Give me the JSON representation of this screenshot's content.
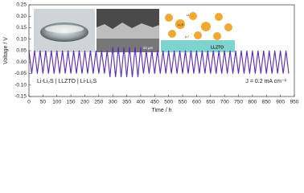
{
  "chart_data": {
    "type": "line",
    "y_label": "Voltage / V",
    "x_label": "Time / h",
    "annotations": [
      "Li-Li₂S | LLZTO | Li-Li₂S",
      "J = 0.2 mA cm⁻²"
    ],
    "inset_labels": [
      "10 μm",
      "LLZTO",
      "Li",
      "Li₂S",
      "Li⁺"
    ],
    "x": [
      0,
      10,
      20,
      30,
      40,
      50,
      60,
      70,
      80,
      90,
      100,
      110,
      120,
      130,
      140,
      150,
      160,
      170,
      180,
      190,
      200,
      210,
      220,
      230,
      240,
      250,
      260,
      270,
      280,
      290,
      300,
      310,
      320,
      330,
      340,
      350,
      360,
      370,
      380,
      390,
      400,
      410,
      420,
      430,
      440,
      450,
      460,
      470,
      480,
      490,
      500,
      510,
      520,
      530,
      540,
      550,
      560,
      570,
      580,
      590,
      600,
      610,
      620,
      630,
      640,
      650,
      660,
      670,
      680,
      690,
      700,
      710,
      720,
      730,
      740,
      750,
      760,
      770,
      780,
      790,
      800,
      810,
      820,
      830,
      840,
      850,
      860,
      870,
      880,
      890,
      900,
      910,
      920,
      930
    ],
    "series": [
      {
        "color": "#5b2bb5",
        "values": [
          0.05,
          -0.05,
          0.05,
          -0.05,
          0.05,
          -0.05,
          0.05,
          -0.05,
          0.05,
          -0.05,
          0.05,
          -0.05,
          0.05,
          -0.05,
          0.05,
          -0.05,
          0.05,
          -0.05,
          0.05,
          -0.05,
          0.05,
          -0.05,
          0.05,
          -0.05,
          0.05,
          -0.05,
          0.05,
          -0.05,
          0.05,
          -0.065,
          0.065,
          -0.065,
          0.065,
          -0.065,
          0.065,
          -0.065,
          0.065,
          -0.065,
          0.065,
          -0.065,
          0.065,
          -0.05,
          0.05,
          -0.05,
          0.05,
          -0.05,
          0.05,
          -0.05,
          0.05,
          -0.05,
          0.05,
          -0.05,
          0.05,
          -0.05,
          0.05,
          -0.05,
          0.05,
          -0.05,
          0.05,
          -0.05,
          0.05,
          -0.05,
          0.05,
          -0.05,
          0.05,
          -0.05,
          0.05,
          -0.05,
          0.05,
          -0.05,
          0.05,
          -0.05,
          0.05,
          -0.05,
          0.05,
          -0.05,
          0.05,
          -0.05,
          0.05,
          -0.05,
          0.05,
          -0.05,
          0.05,
          -0.05,
          0.05,
          -0.05,
          0.05,
          -0.05,
          0.05,
          -0.05,
          0.05,
          -0.05,
          0.05,
          -0.05
        ]
      }
    ],
    "xlim": [
      0,
      950
    ],
    "xticks": [
      0,
      50,
      100,
      150,
      200,
      250,
      300,
      350,
      400,
      450,
      500,
      550,
      600,
      650,
      700,
      750,
      800,
      850,
      900,
      950
    ],
    "ylim": [
      -0.15,
      0.25
    ],
    "yticks": [
      {
        "value": -0.15,
        "label": "-0.15"
      },
      {
        "value": -0.1,
        "label": "-0.10"
      },
      {
        "value": -0.05,
        "label": "-0.05"
      },
      {
        "value": 0,
        "label": "0.00"
      },
      {
        "value": 0.05,
        "label": "0.05"
      },
      {
        "value": 0.1,
        "label": "0.10"
      },
      {
        "value": 0.15,
        "label": "0.15"
      },
      {
        "value": 0.2,
        "label": "0.20"
      },
      {
        "value": 0.25,
        "label": "0.25"
      }
    ],
    "grid": false
  }
}
